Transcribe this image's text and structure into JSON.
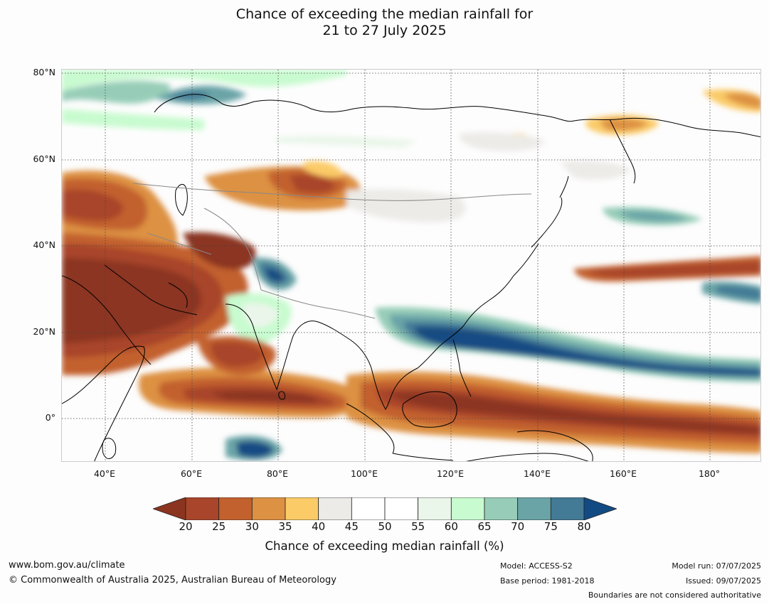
{
  "title_line1": "Chance of exceeding the median rainfall for",
  "title_line2": "21 to 27 July 2025",
  "map": {
    "lat_labels": [
      "80°N",
      "60°N",
      "40°N",
      "20°N",
      "0°"
    ],
    "lon_labels": [
      "40°E",
      "60°E",
      "80°E",
      "100°E",
      "120°E",
      "140°E",
      "160°E",
      "180°"
    ],
    "extent": {
      "lon_min": 30,
      "lon_max": 192,
      "lat_min": -10,
      "lat_max": 81
    }
  },
  "colorbar": {
    "title": "Chance of exceeding median rainfall (%)",
    "ticks": [
      "20",
      "25",
      "30",
      "35",
      "40",
      "45",
      "50",
      "55",
      "60",
      "65",
      "70",
      "75",
      "80"
    ],
    "colors": [
      "#8b3420",
      "#a8452a",
      "#c2612e",
      "#dd9142",
      "#fbcb67",
      "#ecebe8",
      "#ffffff",
      "#ffffff",
      "#eaf6ea",
      "#c8fbcf",
      "#97cdb8",
      "#6aa4a7",
      "#437a96",
      "#124b83"
    ],
    "extend": "both"
  },
  "footer": {
    "website": "www.bom.gov.au/climate",
    "copyright": "© Commonwealth of Australia 2025, Australian Bureau of Meteorology",
    "model": "Model: ACCESS-S2",
    "base_period": "Base period: 1981-2018",
    "model_run": "Model run: 07/07/2025",
    "issued": "Issued: 09/07/2025",
    "boundaries_note": "Boundaries are not considered authoritative"
  }
}
